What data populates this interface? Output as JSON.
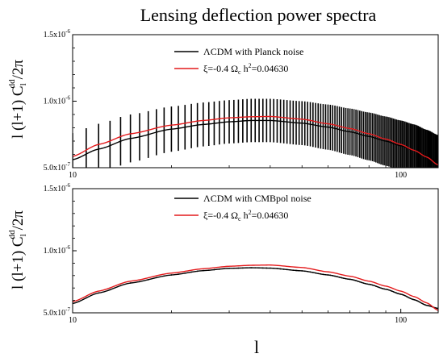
{
  "figure": {
    "title": "Lensing deflection power spectra",
    "xlabel": "l",
    "ylabel": "l (l+1) C_l^dd / 2π",
    "ylabel_parts": {
      "main": "l (l+1) C",
      "sub": "l",
      "sup": "dd",
      "tail": "/2π"
    }
  },
  "chart_data": [
    {
      "type": "line",
      "title": "",
      "xlabel": "l",
      "ylabel": "l (l+1) C_l^dd / 2π",
      "xscale": "log",
      "xlim": [
        10,
        130
      ],
      "ylim": [
        5e-07,
        1.5e-06
      ],
      "x_ticks": [
        {
          "value": 10,
          "label": "10"
        },
        {
          "value": 100,
          "label": "100"
        }
      ],
      "y_ticks": [
        {
          "value": 5e-07,
          "label": "5.0x10",
          "exp": "-7"
        },
        {
          "value": 1e-06,
          "label": "1.0x10",
          "exp": "-6"
        },
        {
          "value": 1.5e-06,
          "label": "1.5x10",
          "exp": "-6"
        }
      ],
      "grid": false,
      "legend_position": "top-center",
      "x": [
        10,
        12,
        15,
        20,
        25,
        30,
        35,
        40,
        50,
        60,
        70,
        80,
        90,
        100,
        110,
        120,
        130
      ],
      "series": [
        {
          "name": "ΛCDM with Planck noise",
          "legend_parts": {
            "text": "ΛCDM with Planck noise"
          },
          "color": "#000000",
          "values": [
            5.6e-07,
            6.4e-07,
            7.2e-07,
            7.9e-07,
            8.25e-07,
            8.45e-07,
            8.55e-07,
            8.55e-07,
            8.35e-07,
            8.05e-07,
            7.7e-07,
            7.35e-07,
            7e-07,
            6.65e-07,
            6.3e-07,
            5.85e-07,
            5.4e-07
          ],
          "error_bar_style": "vertical lines at every multipole",
          "errors": [
            2e-07,
            1.9e-07,
            1.8e-07,
            1.7e-07,
            1.65e-07,
            1.63e-07,
            1.63e-07,
            1.63e-07,
            1.65e-07,
            1.7e-07,
            1.75e-07,
            1.8e-07,
            1.85e-07,
            1.9e-07,
            1.95e-07,
            2e-07,
            2.05e-07
          ]
        },
        {
          "name": "ξ=-0.4 Ω_c h^2=0.04630",
          "legend_parts": {
            "pre": "ξ=-0.4 Ω",
            "sub": "c",
            "mid": " h",
            "sup": "2",
            "post": "=0.04630"
          },
          "color": "#e41a1c",
          "values": [
            5.85e-07,
            6.75e-07,
            7.55e-07,
            8.2e-07,
            8.55e-07,
            8.75e-07,
            8.83e-07,
            8.85e-07,
            8.65e-07,
            8.3e-07,
            7.95e-07,
            7.55e-07,
            7.15e-07,
            6.75e-07,
            6.3e-07,
            5.8e-07,
            5.2e-07
          ]
        }
      ]
    },
    {
      "type": "line",
      "title": "",
      "xlabel": "l",
      "ylabel": "l (l+1) C_l^dd / 2π",
      "xscale": "log",
      "xlim": [
        10,
        130
      ],
      "ylim": [
        5e-07,
        1.5e-06
      ],
      "x_ticks": [
        {
          "value": 10,
          "label": "10"
        },
        {
          "value": 100,
          "label": "100"
        }
      ],
      "y_ticks": [
        {
          "value": 5e-07,
          "label": "5.0x10",
          "exp": "-7"
        },
        {
          "value": 1e-06,
          "label": "1.0x10",
          "exp": "-6"
        },
        {
          "value": 1.5e-06,
          "label": "1.5x10",
          "exp": "-6"
        }
      ],
      "grid": false,
      "legend_position": "top-center",
      "x": [
        10,
        12,
        15,
        20,
        25,
        30,
        35,
        40,
        50,
        60,
        70,
        80,
        90,
        100,
        110,
        120,
        130
      ],
      "series": [
        {
          "name": "ΛCDM with CMBpol noise",
          "legend_parts": {
            "text": "ΛCDM with CMBpol noise"
          },
          "color": "#000000",
          "values": [
            5.75e-07,
            6.6e-07,
            7.4e-07,
            8.05e-07,
            8.4e-07,
            8.58e-07,
            8.63e-07,
            8.6e-07,
            8.38e-07,
            8.05e-07,
            7.7e-07,
            7.3e-07,
            6.9e-07,
            6.5e-07,
            6.05e-07,
            5.6e-07,
            5.35e-07
          ],
          "error_bar_style": "short vertical lines at every multipole",
          "errors": [
            5e-09,
            5e-09,
            5e-09,
            5e-09,
            5e-09,
            5e-09,
            5e-09,
            5e-09,
            5e-09,
            5e-09,
            5e-09,
            5e-09,
            5e-09,
            5e-09,
            5e-09,
            5e-09,
            5e-09
          ]
        },
        {
          "name": "ξ=-0.4 Ω_c h^2=0.04630",
          "legend_parts": {
            "pre": "ξ=-0.4 Ω",
            "sub": "c",
            "mid": " h",
            "sup": "2",
            "post": "=0.04630"
          },
          "color": "#e41a1c",
          "values": [
            5.9e-07,
            6.75e-07,
            7.55e-07,
            8.2e-07,
            8.55e-07,
            8.75e-07,
            8.83e-07,
            8.85e-07,
            8.65e-07,
            8.3e-07,
            7.95e-07,
            7.55e-07,
            7.15e-07,
            6.75e-07,
            6.3e-07,
            5.8e-07,
            5.2e-07
          ]
        }
      ]
    }
  ]
}
